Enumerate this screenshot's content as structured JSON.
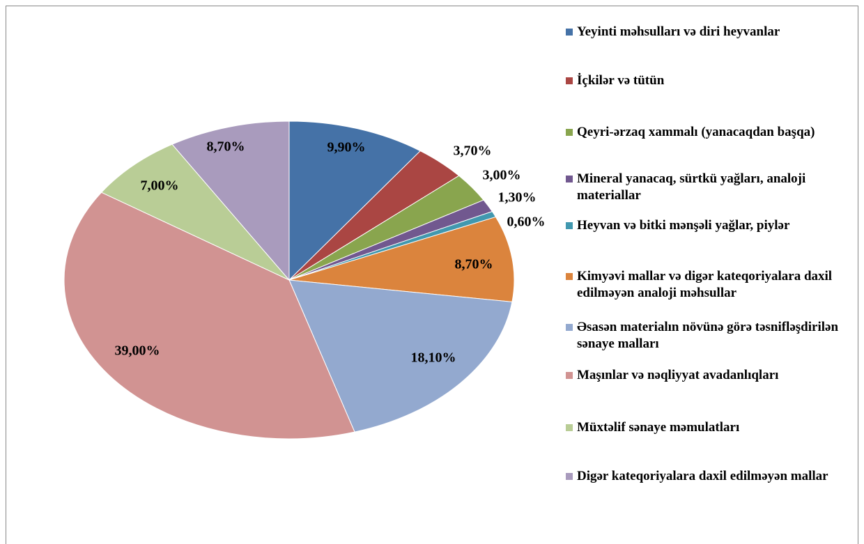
{
  "chart_data": {
    "type": "pie",
    "categories": [
      "Yeyinti məhsulları və diri heyvanlar",
      "İçkilər və tütün",
      "Qeyri-ərzaq xammalı (yanacaqdan başqa)",
      "Mineral yanacaq, sürtkü yağları, analoji materiallar",
      "Heyvan və bitki mənşəli yağlar, piylər",
      "Kimyəvi mallar və digər kateqoriyalara daxil edilməyən analoji məhsullar",
      "Əsasən materialın növünə görə təsnifləşdirilən sənaye malları",
      "Maşınlar və nəqliyyat avadanlıqları",
      "Müxtəlif sənaye məmulatları",
      "Digər kateqoriyalara daxil edilməyən mallar"
    ],
    "values": [
      9.9,
      3.7,
      3.0,
      1.3,
      0.6,
      8.7,
      18.1,
      39.0,
      7.0,
      8.7
    ],
    "value_labels": [
      "9,90%",
      "3,70%",
      "3,00%",
      "1,30%",
      "0,60%",
      "8,70%",
      "18,10%",
      "39,00%",
      "7,00%",
      "8,70%"
    ],
    "colors": [
      "#4572a7",
      "#aa4643",
      "#89a54e",
      "#71588f",
      "#4198af",
      "#db843d",
      "#93a9cf",
      "#d19392",
      "#b9cd96",
      "#a99bbd"
    ],
    "legend": "right"
  }
}
